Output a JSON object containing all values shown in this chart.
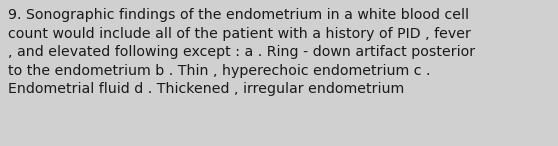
{
  "text": "9. Sonographic findings of the endometrium in a white blood cell\ncount would include all of the patient with a history of PID , fever\n, and elevated following except : a . Ring - down artifact posterior\nto the endometrium b . Thin , hyperechoic endometrium c .\nEndometrial fluid d . Thickened , irregular endometrium",
  "background_color": "#d0d0d0",
  "text_color": "#1a1a1a",
  "font_size": 10.2,
  "fig_width": 5.58,
  "fig_height": 1.46,
  "dpi": 100
}
